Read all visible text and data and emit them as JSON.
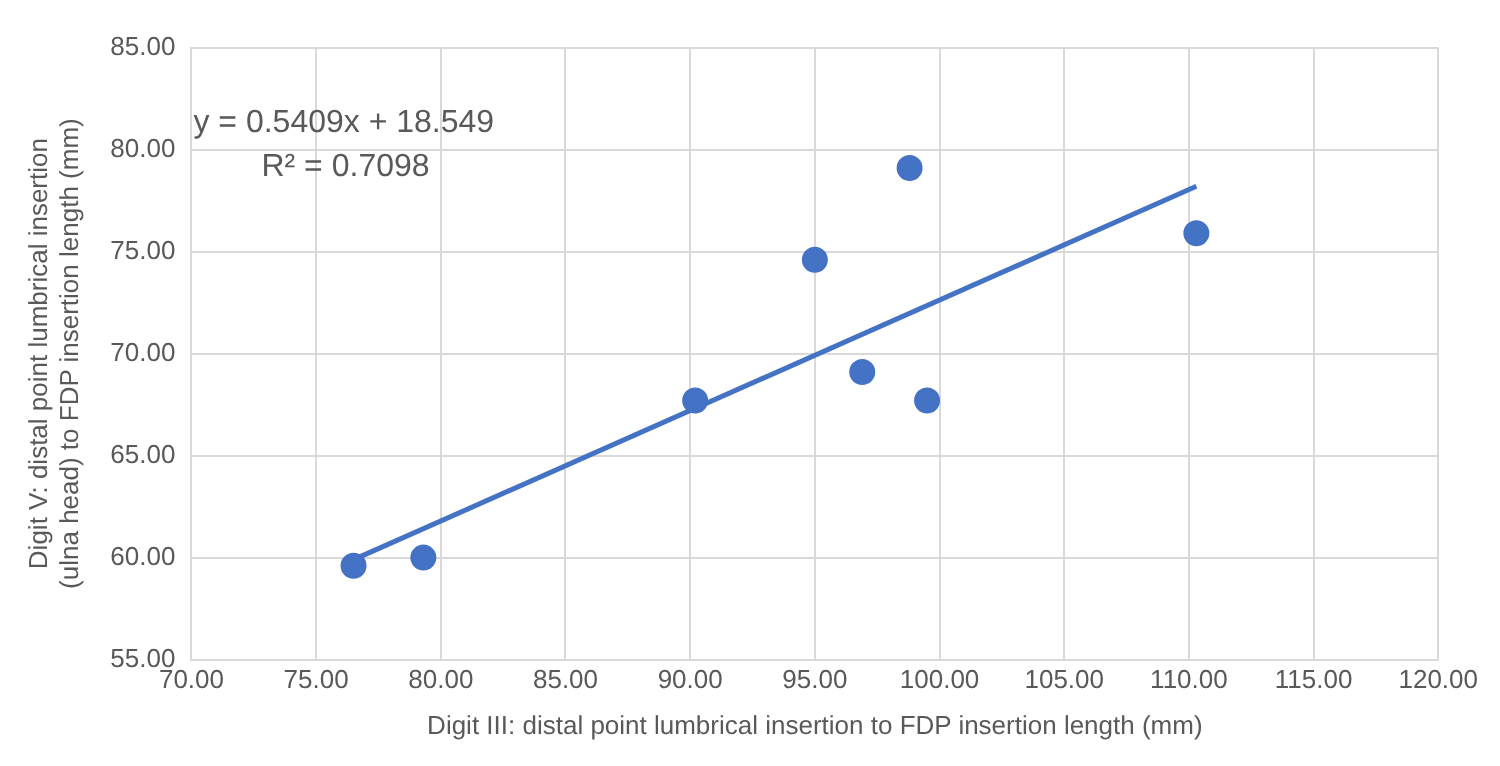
{
  "chart_data": {
    "type": "scatter",
    "xlabel": "Digit III: distal point lumbrical insertion to FDP insertion length (mm)",
    "ylabel": "Digit V: distal point lumbrical insertion (ulna head) to FDP insertion length (mm)",
    "annotations": [
      "y = 0.5409x + 18.549",
      "R² = 0.7098"
    ],
    "series": [
      {
        "type": "scatter",
        "color": "#4472c4",
        "x": [
          76.5,
          79.3,
          90.2,
          95.0,
          96.9,
          98.8,
          99.5,
          110.3
        ],
        "values": [
          59.6,
          60.0,
          67.7,
          74.6,
          69.1,
          79.1,
          67.7,
          75.9
        ]
      },
      {
        "type": "line",
        "color": "#4472c4",
        "marker": "none",
        "x": [
          76.5,
          110.3
        ],
        "values": [
          59.9,
          78.2
        ]
      }
    ],
    "xlim": [
      70,
      120
    ],
    "xticks": [
      {
        "value": 70,
        "label": "70.00"
      },
      {
        "value": 75,
        "label": "75.00"
      },
      {
        "value": 80,
        "label": "80.00"
      },
      {
        "value": 85,
        "label": "85.00"
      },
      {
        "value": 90,
        "label": "90.00"
      },
      {
        "value": 95,
        "label": "95.00"
      },
      {
        "value": 100,
        "label": "100.00"
      },
      {
        "value": 105,
        "label": "105.00"
      },
      {
        "value": 110,
        "label": "110.00"
      },
      {
        "value": 115,
        "label": "115.00"
      },
      {
        "value": 120,
        "label": "120.00"
      }
    ],
    "ylim": [
      55,
      85
    ],
    "yticks": [
      {
        "value": 55,
        "label": "55.00"
      },
      {
        "value": 60,
        "label": "60.00"
      },
      {
        "value": 65,
        "label": "65.00"
      },
      {
        "value": 70,
        "label": "70.00"
      },
      {
        "value": 75,
        "label": "75.00"
      },
      {
        "value": 80,
        "label": "80.00"
      },
      {
        "value": 85,
        "label": "85.00"
      }
    ],
    "grid": true,
    "legend": false,
    "marker": "circle"
  }
}
